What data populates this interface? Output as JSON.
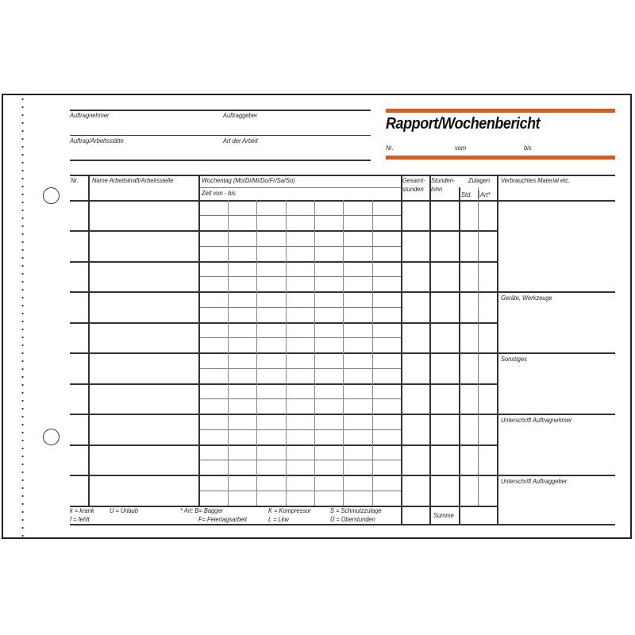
{
  "colors": {
    "accent": "#e05a1c",
    "line": "#333333"
  },
  "header": {
    "title": "Rapport/Wochenbericht",
    "fields": {
      "auftragnehmer": "Auftragnehmer",
      "auftraggeber": "Auftraggeber",
      "auftrag": "Auftrag/Arbeitsstätte",
      "art": "Art der Arbeit"
    },
    "nr": "Nr.",
    "vom": "vom",
    "bis": "bis"
  },
  "table": {
    "headers": {
      "nr": "Nr.",
      "name": "Name Arbeitskraft/Arbeitsstelle",
      "wochentag": "Wochentag (Mo/Di/Mi/Do/Fr/Sa/So)",
      "zeit": "Zeit von - bis",
      "gesamt1": "Gesamt-",
      "gesamt2": "stunden",
      "stunden1": "Stunden-",
      "stunden2": "lohn",
      "zulagen": "Zulagen",
      "std": "Std.",
      "art": "Art*",
      "material": "Verbrauchtes Material etc."
    },
    "side_sections": [
      "Geräte, Werkzeuge",
      "Sonstiges",
      "Unterschrift Auftragnehmer",
      "Unterschrift Auftraggeber"
    ],
    "summe": "Summe"
  },
  "legend": {
    "k": "k  =  krank",
    "u": "U  =  Urlaub",
    "f": "f   =  fehlt",
    "art": "* Art:  B= Bagger",
    "fei": "F= Feiertagsarbeit",
    "kom": "K  =  Kompressor",
    "lkw": "L  =  Lkw",
    "s": "S  =  Schmutzzulage",
    "ue": "Ü  =  Überstunden"
  }
}
